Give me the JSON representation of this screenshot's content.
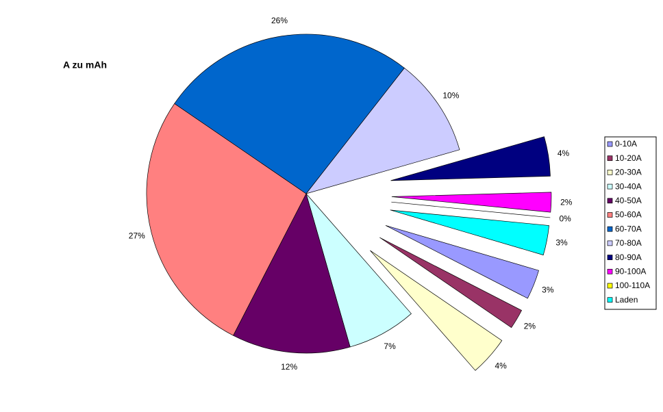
{
  "chart_data": {
    "type": "pie",
    "title": "A zu mAh",
    "categories": [
      "0-10A",
      "10-20A",
      "20-30A",
      "30-40A",
      "40-50A",
      "50-60A",
      "60-70A",
      "70-80A",
      "80-90A",
      "90-100A",
      "100-110A",
      "Laden"
    ],
    "values": [
      3,
      2,
      4,
      7,
      12,
      27,
      26,
      10,
      4,
      2,
      0,
      3
    ],
    "value_labels": [
      "3%",
      "2%",
      "4%",
      "7%",
      "12%",
      "27%",
      "26%",
      "10%",
      "4%",
      "2%",
      "0%",
      "3%"
    ],
    "colors": [
      "#9999FF",
      "#993366",
      "#FFFFCC",
      "#CCFFFF",
      "#660066",
      "#FF8080",
      "#0066CC",
      "#CCCCFF",
      "#000080",
      "#FF00FF",
      "#FFFF00",
      "#00FFFF"
    ],
    "legend": "right"
  }
}
